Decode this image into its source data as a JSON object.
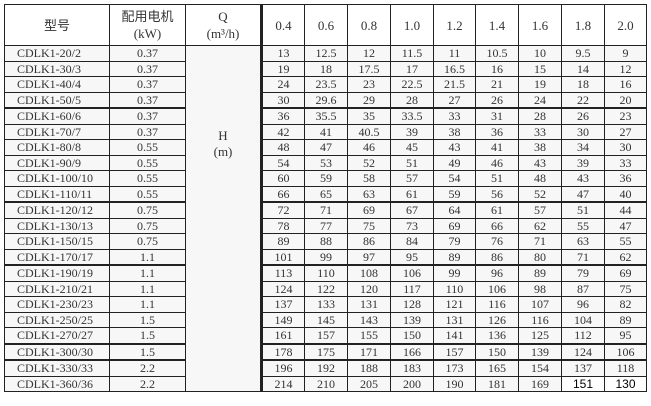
{
  "headers": {
    "model": "型号",
    "motor_line1": "配用电机",
    "motor_line2": "(kW)",
    "q_line1": "Q",
    "q_line2": "(m³/h)",
    "h_line1": "H",
    "h_line2": "(m)"
  },
  "flows": [
    "0.4",
    "0.6",
    "0.8",
    "1.0",
    "1.2",
    "1.4",
    "1.6",
    "1.8",
    "2.0"
  ],
  "rows": [
    {
      "model": "CDLK1-20/2",
      "kw": "0.37",
      "h": [
        "13",
        "12.5",
        "12",
        "11.5",
        "11",
        "10.5",
        "10",
        "9.5",
        "9"
      ]
    },
    {
      "model": "CDLK1-30/3",
      "kw": "0.37",
      "h": [
        "19",
        "18",
        "17.5",
        "17",
        "16.5",
        "16",
        "15",
        "14",
        "12"
      ]
    },
    {
      "model": "CDLK1-40/4",
      "kw": "0.37",
      "h": [
        "24",
        "23.5",
        "23",
        "22.5",
        "21.5",
        "21",
        "19",
        "18",
        "16"
      ]
    },
    {
      "model": "CDLK1-50/5",
      "kw": "0.37",
      "h": [
        "30",
        "29.6",
        "29",
        "28",
        "27",
        "26",
        "24",
        "22",
        "20"
      ]
    },
    {
      "model": "CDLK1-60/6",
      "kw": "0.37",
      "h": [
        "36",
        "35.5",
        "35",
        "33.5",
        "33",
        "31",
        "28",
        "26",
        "23"
      ]
    },
    {
      "model": "CDLK1-70/7",
      "kw": "0.37",
      "h": [
        "42",
        "41",
        "40.5",
        "39",
        "38",
        "36",
        "33",
        "30",
        "27"
      ]
    },
    {
      "model": "CDLK1-80/8",
      "kw": "0.55",
      "h": [
        "48",
        "47",
        "46",
        "45",
        "43",
        "41",
        "38",
        "34",
        "30"
      ]
    },
    {
      "model": "CDLK1-90/9",
      "kw": "0.55",
      "h": [
        "54",
        "53",
        "52",
        "51",
        "49",
        "46",
        "43",
        "39",
        "33"
      ]
    },
    {
      "model": "CDLK1-100/10",
      "kw": "0.55",
      "h": [
        "60",
        "59",
        "58",
        "57",
        "54",
        "51",
        "48",
        "43",
        "36"
      ]
    },
    {
      "model": "CDLK1-110/11",
      "kw": "0.55",
      "h": [
        "66",
        "65",
        "63",
        "61",
        "59",
        "56",
        "52",
        "47",
        "40"
      ]
    },
    {
      "model": "CDLK1-120/12",
      "kw": "0.75",
      "h": [
        "72",
        "71",
        "69",
        "67",
        "64",
        "61",
        "57",
        "51",
        "44"
      ]
    },
    {
      "model": "CDLK1-130/13",
      "kw": "0.75",
      "h": [
        "78",
        "77",
        "75",
        "73",
        "69",
        "66",
        "62",
        "55",
        "47"
      ]
    },
    {
      "model": "CDLK1-150/15",
      "kw": "0.75",
      "h": [
        "89",
        "88",
        "86",
        "84",
        "79",
        "76",
        "71",
        "63",
        "55"
      ]
    },
    {
      "model": "CDLK1-170/17",
      "kw": "1.1",
      "h": [
        "101",
        "99",
        "97",
        "95",
        "89",
        "86",
        "80",
        "71",
        "62"
      ]
    },
    {
      "model": "CDLK1-190/19",
      "kw": "1.1",
      "h": [
        "113",
        "110",
        "108",
        "106",
        "99",
        "96",
        "89",
        "79",
        "69"
      ]
    },
    {
      "model": "CDLK1-210/21",
      "kw": "1.1",
      "h": [
        "124",
        "122",
        "120",
        "117",
        "110",
        "106",
        "98",
        "87",
        "75"
      ]
    },
    {
      "model": "CDLK1-230/23",
      "kw": "1.1",
      "h": [
        "137",
        "133",
        "131",
        "128",
        "121",
        "116",
        "107",
        "96",
        "82"
      ]
    },
    {
      "model": "CDLK1-250/25",
      "kw": "1.5",
      "h": [
        "149",
        "145",
        "143",
        "139",
        "131",
        "126",
        "116",
        "104",
        "89"
      ]
    },
    {
      "model": "CDLK1-270/27",
      "kw": "1.5",
      "h": [
        "161",
        "157",
        "155",
        "150",
        "141",
        "136",
        "125",
        "112",
        "95"
      ]
    },
    {
      "model": "CDLK1-300/30",
      "kw": "1.5",
      "h": [
        "178",
        "175",
        "171",
        "166",
        "157",
        "150",
        "139",
        "124",
        "106"
      ]
    },
    {
      "model": "CDLK1-330/33",
      "kw": "2.2",
      "h": [
        "196",
        "192",
        "188",
        "183",
        "173",
        "165",
        "154",
        "137",
        "118"
      ]
    },
    {
      "model": "CDLK1-360/36",
      "kw": "2.2",
      "h": [
        "214",
        "210",
        "205",
        "200",
        "190",
        "181",
        "169",
        "151",
        "130"
      ]
    }
  ]
}
